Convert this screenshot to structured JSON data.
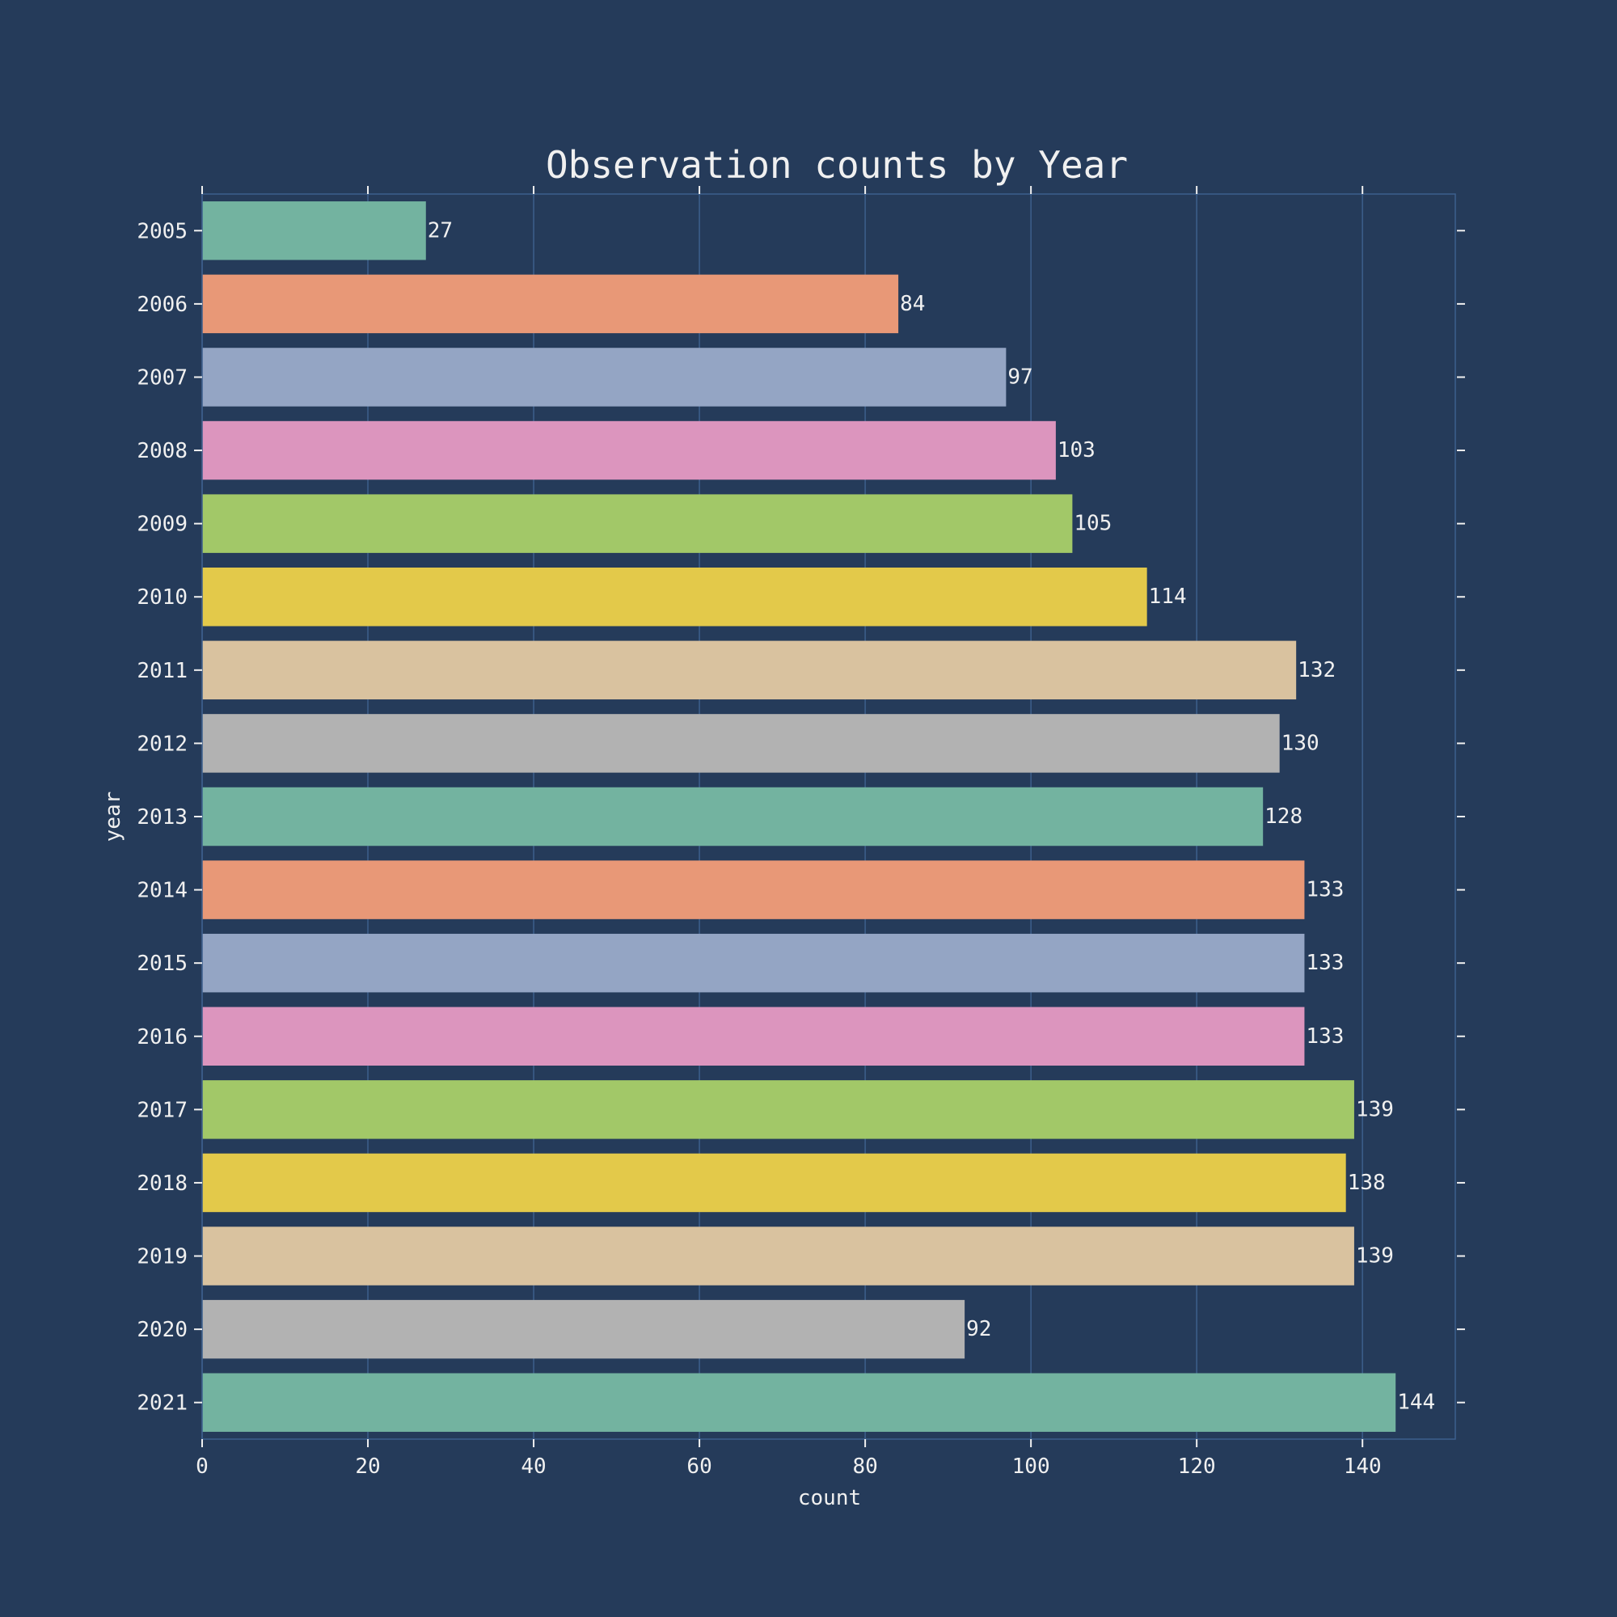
{
  "chart_data": {
    "type": "bar",
    "orientation": "horizontal",
    "title": "Observation counts by Year",
    "xlabel": "count",
    "ylabel": "year",
    "categories": [
      "2005",
      "2006",
      "2007",
      "2008",
      "2009",
      "2010",
      "2011",
      "2012",
      "2013",
      "2014",
      "2015",
      "2016",
      "2017",
      "2018",
      "2019",
      "2020",
      "2021"
    ],
    "values": [
      27,
      84,
      97,
      103,
      105,
      114,
      132,
      130,
      128,
      133,
      133,
      133,
      139,
      138,
      139,
      92,
      144
    ],
    "data_labels": [
      "27",
      "84",
      "97",
      "103",
      "105",
      "114",
      "132",
      "130",
      "128",
      "133",
      "133",
      "133",
      "139",
      "138",
      "139",
      "92",
      "144"
    ],
    "xlim": [
      0,
      151.2
    ],
    "xticks": [
      0,
      20,
      40,
      60,
      80,
      100,
      120,
      140
    ],
    "xtick_labels": [
      "0",
      "20",
      "40",
      "60",
      "80",
      "100",
      "120",
      "140"
    ],
    "grid": "vertical",
    "legend": "none",
    "bar_colors": [
      "#73b3a0",
      "#e89877",
      "#94a5c4",
      "#dc95be",
      "#a2c868",
      "#e3c94a",
      "#d9c29f",
      "#b2b2b2",
      "#73b3a0",
      "#e89877",
      "#94a5c4",
      "#dc95be",
      "#a2c868",
      "#e3c94a",
      "#d9c29f",
      "#b2b2b2",
      "#73b3a0"
    ]
  },
  "theme": {
    "background": "#253b5a",
    "text_color": "#f0f0f0",
    "grid_color": "#3d5f8c",
    "frame_color": "#3d5f8c",
    "tick_color": "#f0f0f0"
  }
}
